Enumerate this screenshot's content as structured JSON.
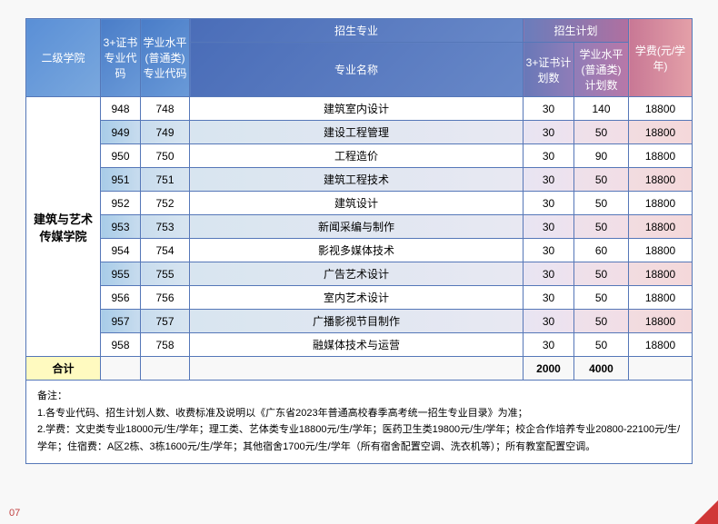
{
  "headers": {
    "college": "二级学院",
    "code1": "3+证书专业代码",
    "code2": "学业水平(普通类)专业代码",
    "major_group": "招生专业",
    "major_name": "专业名称",
    "plan_group": "招生计划",
    "plan1": "3+证书计划数",
    "plan2": "学业水平(普通类)计划数",
    "fee": "学费(元/学年)"
  },
  "college_name": "建筑与艺术传媒学院",
  "rows": [
    {
      "code1": "948",
      "code2": "748",
      "name": "建筑室内设计",
      "plan1": "30",
      "plan2": "140",
      "fee": "18800"
    },
    {
      "code1": "949",
      "code2": "749",
      "name": "建设工程管理",
      "plan1": "30",
      "plan2": "50",
      "fee": "18800"
    },
    {
      "code1": "950",
      "code2": "750",
      "name": "工程造价",
      "plan1": "30",
      "plan2": "90",
      "fee": "18800"
    },
    {
      "code1": "951",
      "code2": "751",
      "name": "建筑工程技术",
      "plan1": "30",
      "plan2": "50",
      "fee": "18800"
    },
    {
      "code1": "952",
      "code2": "752",
      "name": "建筑设计",
      "plan1": "30",
      "plan2": "50",
      "fee": "18800"
    },
    {
      "code1": "953",
      "code2": "753",
      "name": "新闻采编与制作",
      "plan1": "30",
      "plan2": "50",
      "fee": "18800"
    },
    {
      "code1": "954",
      "code2": "754",
      "name": "影视多媒体技术",
      "plan1": "30",
      "plan2": "60",
      "fee": "18800"
    },
    {
      "code1": "955",
      "code2": "755",
      "name": "广告艺术设计",
      "plan1": "30",
      "plan2": "50",
      "fee": "18800"
    },
    {
      "code1": "956",
      "code2": "756",
      "name": "室内艺术设计",
      "plan1": "30",
      "plan2": "50",
      "fee": "18800"
    },
    {
      "code1": "957",
      "code2": "757",
      "name": "广播影视节目制作",
      "plan1": "30",
      "plan2": "50",
      "fee": "18800"
    },
    {
      "code1": "958",
      "code2": "758",
      "name": "融媒体技术与运营",
      "plan1": "30",
      "plan2": "50",
      "fee": "18800"
    }
  ],
  "total": {
    "label": "合计",
    "plan1": "2000",
    "plan2": "4000"
  },
  "notes": {
    "title": "备注：",
    "line1": "1.各专业代码、招生计划人数、收费标准及说明以《广东省2023年普通高校春季高考统一招生专业目录》为准；",
    "line2": "2.学费：文史类专业18000元/生/学年；理工类、艺体类专业18800元/生/学年；医药卫生类19800元/生/学年；校企合作培养专业20800-22100元/生/学年；住宿费：A区2栋、3栋1600元/生/学年；其他宿舍1700元/生/学年（所有宿舍配置空调、洗衣机等）；所有教室配置空调。"
  },
  "page_number": "07",
  "colors": {
    "border": "#5577b8",
    "total_bg": "#fffac0",
    "corner": "#d03838"
  }
}
